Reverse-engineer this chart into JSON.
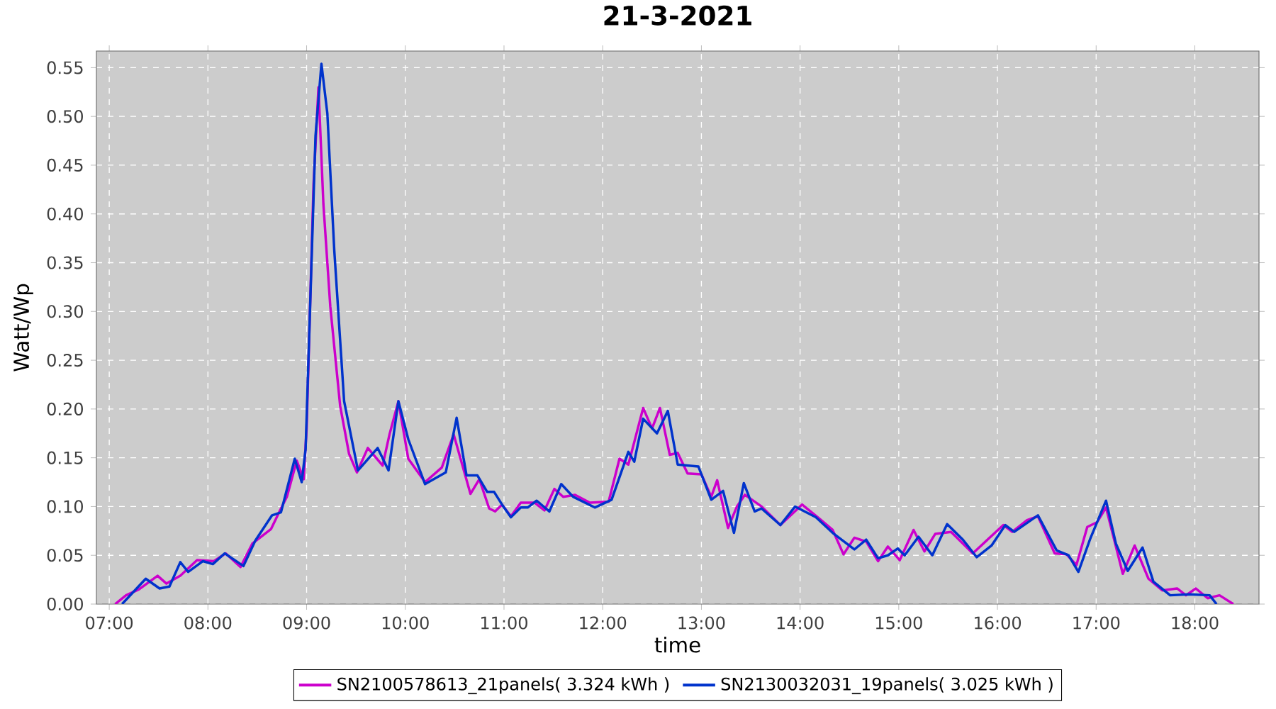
{
  "chart_data": {
    "type": "line",
    "title": "21-3-2021",
    "xlabel": "time",
    "ylabel": "Watt/Wp",
    "xlim": [
      6.87,
      18.65
    ],
    "ylim": [
      0,
      0.567
    ],
    "xticks": [
      {
        "value": 7,
        "label": "07:00"
      },
      {
        "value": 8,
        "label": "08:00"
      },
      {
        "value": 9,
        "label": "09:00"
      },
      {
        "value": 10,
        "label": "10:00"
      },
      {
        "value": 11,
        "label": "11:00"
      },
      {
        "value": 12,
        "label": "12:00"
      },
      {
        "value": 13,
        "label": "13:00"
      },
      {
        "value": 14,
        "label": "14:00"
      },
      {
        "value": 15,
        "label": "15:00"
      },
      {
        "value": 16,
        "label": "16:00"
      },
      {
        "value": 17,
        "label": "17:00"
      },
      {
        "value": 18,
        "label": "18:00"
      }
    ],
    "yticks": [
      {
        "value": 0,
        "label": "0.00"
      },
      {
        "value": 0.05,
        "label": "0.05"
      },
      {
        "value": 0.1,
        "label": "0.10"
      },
      {
        "value": 0.15,
        "label": "0.15"
      },
      {
        "value": 0.2,
        "label": "0.20"
      },
      {
        "value": 0.25,
        "label": "0.25"
      },
      {
        "value": 0.3,
        "label": "0.30"
      },
      {
        "value": 0.35,
        "label": "0.35"
      },
      {
        "value": 0.4,
        "label": "0.40"
      },
      {
        "value": 0.45,
        "label": "0.45"
      },
      {
        "value": 0.5,
        "label": "0.50"
      },
      {
        "value": 0.55,
        "label": "0.55"
      }
    ],
    "grid": true,
    "legend": "bottom",
    "line_style": "solid",
    "series": [
      {
        "name": "SN2100578613_21panels( 3.324 kWh )",
        "color": "#cc00cc",
        "x": [
          7.06,
          7.17,
          7.3,
          7.49,
          7.58,
          7.72,
          7.89,
          8.06,
          8.18,
          8.33,
          8.45,
          8.64,
          8.73,
          8.8,
          8.9,
          8.97,
          9.0,
          9.07,
          9.12,
          9.17,
          9.24,
          9.34,
          9.43,
          9.51,
          9.62,
          9.77,
          9.84,
          9.93,
          10.03,
          10.2,
          10.37,
          10.49,
          10.66,
          10.75,
          10.85,
          10.91,
          10.98,
          11.07,
          11.17,
          11.31,
          11.41,
          11.51,
          11.6,
          11.72,
          11.87,
          12.06,
          12.17,
          12.26,
          12.33,
          12.41,
          12.5,
          12.58,
          12.68,
          12.76,
          12.86,
          13.0,
          13.1,
          13.16,
          13.27,
          13.36,
          13.44,
          13.61,
          13.8,
          14.02,
          14.19,
          14.33,
          14.44,
          14.55,
          14.67,
          14.79,
          14.89,
          15.01,
          15.15,
          15.26,
          15.37,
          15.53,
          15.75,
          15.91,
          16.06,
          16.15,
          16.3,
          16.41,
          16.58,
          16.7,
          16.8,
          16.91,
          17.01,
          17.1,
          17.27,
          17.39,
          17.53,
          17.67,
          17.82,
          17.91,
          18.01,
          18.13,
          18.25,
          18.39
        ],
        "values": [
          0.0,
          0.009,
          0.015,
          0.029,
          0.021,
          0.029,
          0.045,
          0.044,
          0.052,
          0.038,
          0.062,
          0.077,
          0.096,
          0.11,
          0.147,
          0.128,
          0.18,
          0.43,
          0.53,
          0.41,
          0.305,
          0.203,
          0.154,
          0.135,
          0.16,
          0.142,
          0.174,
          0.208,
          0.149,
          0.125,
          0.14,
          0.174,
          0.113,
          0.128,
          0.098,
          0.095,
          0.102,
          0.09,
          0.104,
          0.104,
          0.096,
          0.118,
          0.11,
          0.112,
          0.104,
          0.105,
          0.149,
          0.143,
          0.17,
          0.201,
          0.18,
          0.201,
          0.153,
          0.155,
          0.134,
          0.133,
          0.11,
          0.127,
          0.078,
          0.1,
          0.112,
          0.1,
          0.081,
          0.102,
          0.088,
          0.076,
          0.051,
          0.068,
          0.064,
          0.044,
          0.059,
          0.045,
          0.076,
          0.054,
          0.072,
          0.074,
          0.052,
          0.067,
          0.081,
          0.074,
          0.086,
          0.09,
          0.052,
          0.051,
          0.04,
          0.079,
          0.084,
          0.099,
          0.031,
          0.06,
          0.026,
          0.014,
          0.016,
          0.009,
          0.016,
          0.006,
          0.009,
          0.0
        ]
      },
      {
        "name": "SN2130032031_19panels( 3.025 kWh )",
        "color": "#0033cc",
        "x": [
          7.13,
          7.37,
          7.51,
          7.61,
          7.72,
          7.8,
          7.95,
          8.05,
          8.17,
          8.36,
          8.48,
          8.65,
          8.74,
          8.88,
          8.95,
          8.99,
          9.09,
          9.15,
          9.21,
          9.28,
          9.38,
          9.52,
          9.72,
          9.83,
          9.93,
          10.03,
          10.2,
          10.41,
          10.52,
          10.62,
          10.69,
          10.73,
          10.83,
          10.9,
          10.98,
          11.07,
          11.17,
          11.24,
          11.33,
          11.46,
          11.58,
          11.7,
          11.92,
          12.09,
          12.26,
          12.32,
          12.41,
          12.55,
          12.66,
          12.76,
          12.97,
          13.1,
          13.22,
          13.33,
          13.43,
          13.54,
          13.61,
          13.8,
          13.95,
          14.16,
          14.33,
          14.55,
          14.67,
          14.79,
          14.89,
          14.99,
          15.06,
          15.2,
          15.34,
          15.49,
          15.65,
          15.79,
          15.94,
          16.08,
          16.17,
          16.41,
          16.6,
          16.72,
          16.82,
          16.94,
          17.1,
          17.2,
          17.32,
          17.47,
          17.58,
          17.75,
          17.94,
          18.15,
          18.22
        ],
        "values": [
          0.0,
          0.026,
          0.016,
          0.018,
          0.043,
          0.033,
          0.044,
          0.041,
          0.052,
          0.039,
          0.065,
          0.091,
          0.094,
          0.149,
          0.125,
          0.159,
          0.48,
          0.554,
          0.503,
          0.363,
          0.208,
          0.137,
          0.16,
          0.137,
          0.208,
          0.169,
          0.123,
          0.135,
          0.191,
          0.132,
          0.132,
          0.132,
          0.115,
          0.115,
          0.102,
          0.089,
          0.099,
          0.099,
          0.106,
          0.095,
          0.123,
          0.11,
          0.099,
          0.107,
          0.156,
          0.146,
          0.19,
          0.175,
          0.198,
          0.143,
          0.141,
          0.107,
          0.116,
          0.073,
          0.124,
          0.095,
          0.098,
          0.081,
          0.1,
          0.089,
          0.073,
          0.056,
          0.066,
          0.047,
          0.05,
          0.057,
          0.05,
          0.069,
          0.05,
          0.082,
          0.066,
          0.048,
          0.06,
          0.081,
          0.074,
          0.091,
          0.055,
          0.05,
          0.033,
          0.067,
          0.106,
          0.062,
          0.034,
          0.058,
          0.023,
          0.009,
          0.01,
          0.009,
          0.0
        ]
      }
    ]
  }
}
